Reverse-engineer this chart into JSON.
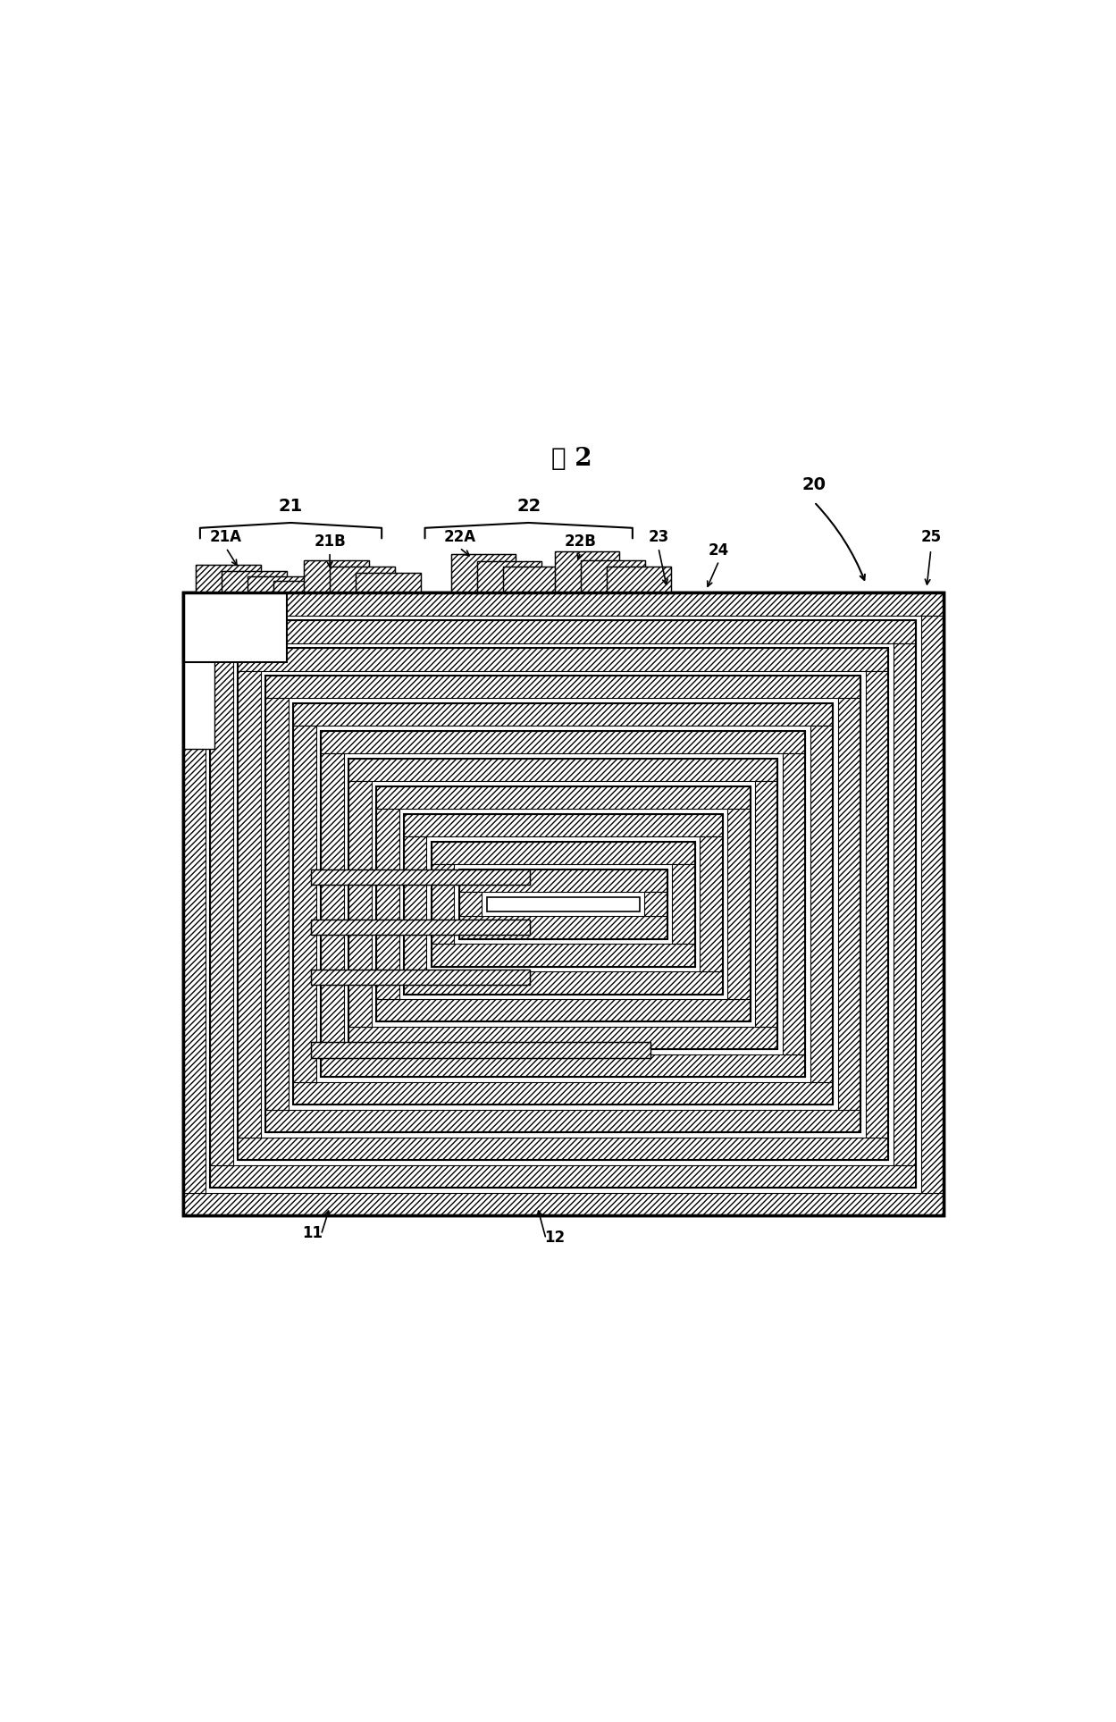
{
  "title": "図 2",
  "label_20": "20",
  "label_21": "21",
  "label_21A": "21A",
  "label_21B": "21B",
  "label_22": "22",
  "label_22A": "22A",
  "label_22B": "22B",
  "label_23": "23",
  "label_24": "24",
  "label_25": "25",
  "label_11": "11",
  "label_12": "12",
  "bg_color": "#ffffff",
  "line_color": "#000000",
  "fig_width": 12.49,
  "fig_height": 19.27
}
